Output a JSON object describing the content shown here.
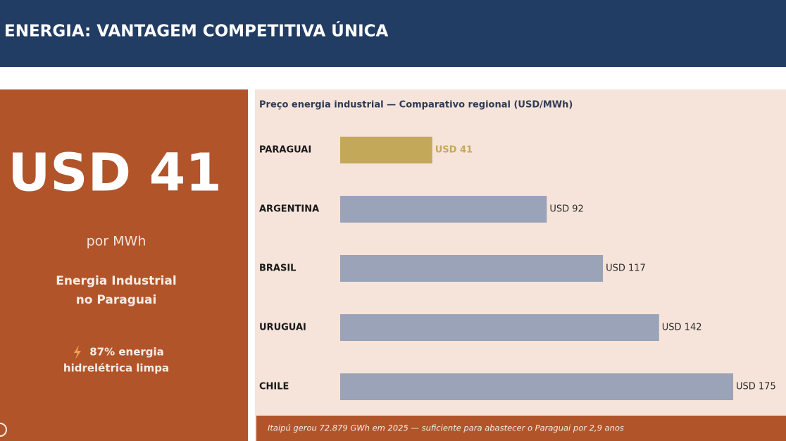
{
  "header": {
    "title": "ENERGIA: VANTAGEM COMPETITIVA ÚNICA"
  },
  "highlight": {
    "value": "USD 41",
    "unit": "por MWh",
    "subtitle": [
      "Energia Industrial",
      "no Paraguai"
    ],
    "note": [
      "87% energia",
      "hidrelétrica limpa"
    ]
  },
  "chart_data": {
    "type": "bar",
    "orientation": "horizontal",
    "title": "Preço energia industrial — Comparativo regional (USD/MWh)",
    "categories": [
      "PARAGUAI",
      "ARGENTINA",
      "BRASIL",
      "URUGUAI",
      "CHILE"
    ],
    "values": [
      41,
      92,
      117,
      142,
      175
    ],
    "value_labels": [
      "USD 41",
      "USD 92",
      "USD 117",
      "USD 142",
      "USD 175"
    ],
    "colors": [
      "#c4a85a",
      "#9aa3b8",
      "#9aa3b8",
      "#9aa3b8",
      "#9aa3b8"
    ],
    "label_colors": [
      "#c4a85a",
      "#2b2b2b",
      "#2b2b2b",
      "#2b2b2b",
      "#2b2b2b"
    ]
  },
  "footnote": "Itaipú gerou 72.879 GWh em 2025 — suficiente para abastecer o Paraguai por 2,9 anos"
}
